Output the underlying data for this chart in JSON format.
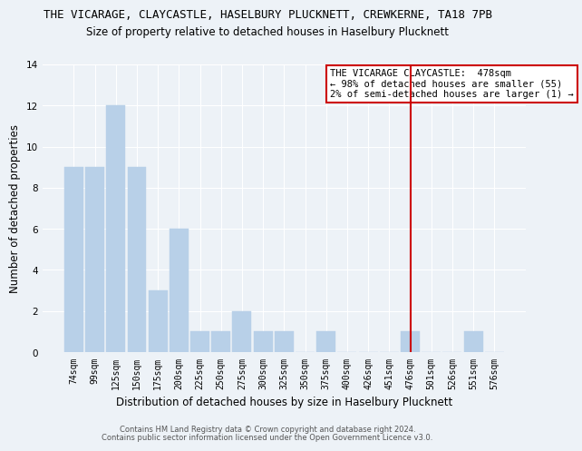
{
  "title1": "THE VICARAGE, CLAYCASTLE, HASELBURY PLUCKNETT, CREWKERNE, TA18 7PB",
  "title2": "Size of property relative to detached houses in Haselbury Plucknett",
  "xlabel": "Distribution of detached houses by size in Haselbury Plucknett",
  "ylabel": "Number of detached properties",
  "footer1": "Contains HM Land Registry data © Crown copyright and database right 2024.",
  "footer2": "Contains public sector information licensed under the Open Government Licence v3.0.",
  "categories": [
    "74sqm",
    "99sqm",
    "125sqm",
    "150sqm",
    "175sqm",
    "200sqm",
    "225sqm",
    "250sqm",
    "275sqm",
    "300sqm",
    "325sqm",
    "350sqm",
    "375sqm",
    "400sqm",
    "426sqm",
    "451sqm",
    "476sqm",
    "501sqm",
    "526sqm",
    "551sqm",
    "576sqm"
  ],
  "values": [
    9,
    9,
    12,
    9,
    3,
    6,
    1,
    1,
    2,
    1,
    1,
    0,
    1,
    0,
    0,
    0,
    1,
    0,
    0,
    1,
    0
  ],
  "bar_color": "#b8d0e8",
  "bar_edge_color": "#b8d0e8",
  "highlight_index": 16,
  "vline_color": "#cc0000",
  "ylim": [
    0,
    14
  ],
  "yticks": [
    0,
    2,
    4,
    6,
    8,
    10,
    12,
    14
  ],
  "annotation_title": "THE VICARAGE CLAYCASTLE:  478sqm",
  "annotation_line1": "← 98% of detached houses are smaller (55)",
  "annotation_line2": "2% of semi-detached houses are larger (1) →",
  "annotation_box_color": "#ffffff",
  "annotation_box_edge": "#cc0000",
  "background_color": "#edf2f7",
  "grid_color": "#ffffff",
  "title1_fontsize": 9.0,
  "title2_fontsize": 8.5,
  "tick_fontsize": 7.0,
  "ylabel_fontsize": 8.5,
  "xlabel_fontsize": 8.5,
  "footer_fontsize": 6.0,
  "ann_fontsize": 7.5
}
